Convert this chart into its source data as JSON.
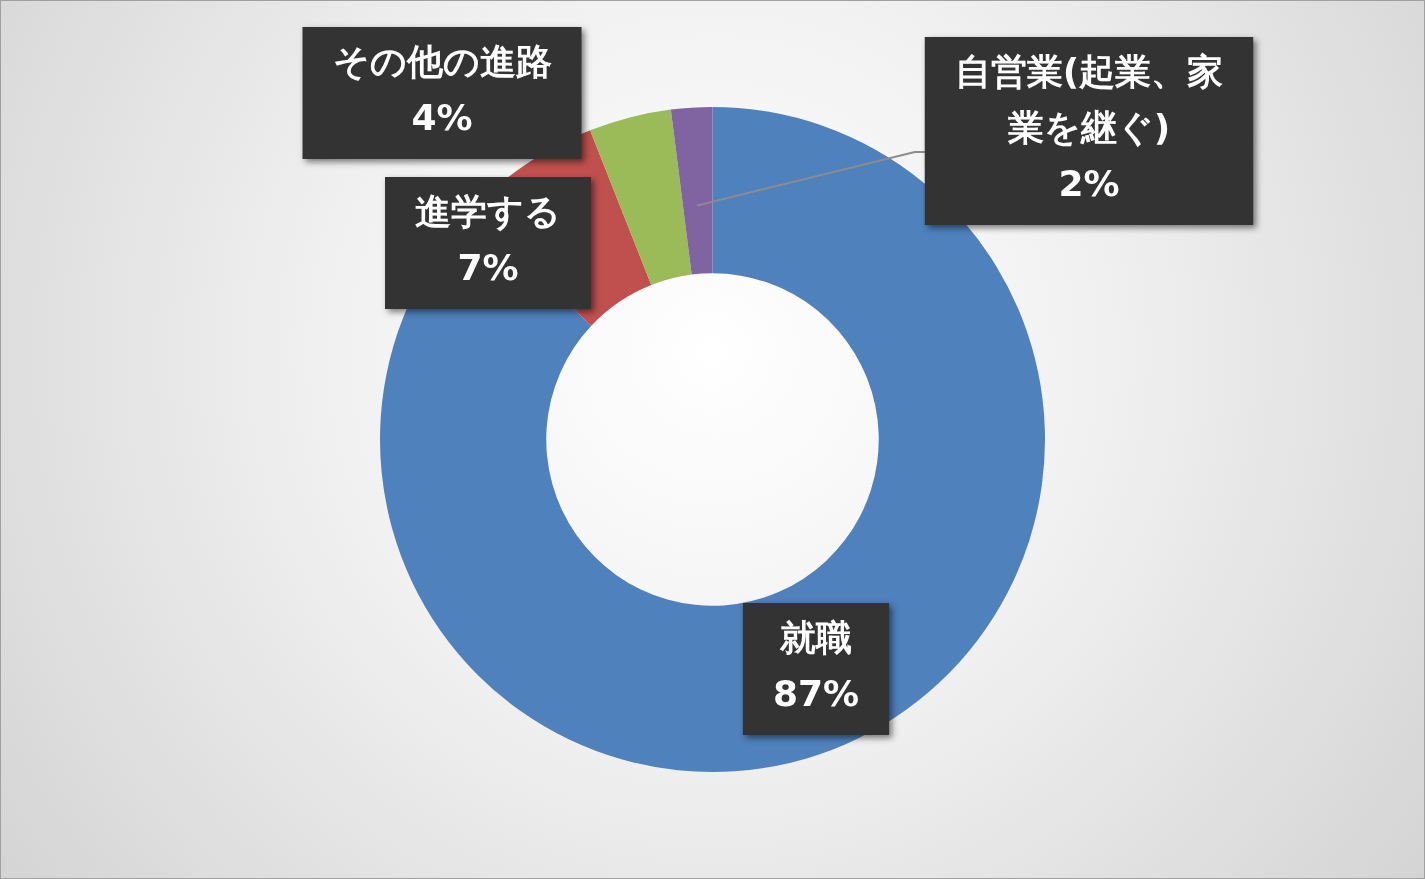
{
  "chart_data": {
    "type": "donut",
    "categories": [
      "就職",
      "進学する",
      "その他の進路",
      "自営業(起業、家業を継ぐ)"
    ],
    "values": [
      87,
      7,
      4,
      2
    ],
    "value_labels": [
      "87%",
      "7%",
      "4%",
      "2%"
    ],
    "colors": [
      "#4f81bd",
      "#c0504d",
      "#9bbb59",
      "#8064a2"
    ],
    "legend": false
  }
}
